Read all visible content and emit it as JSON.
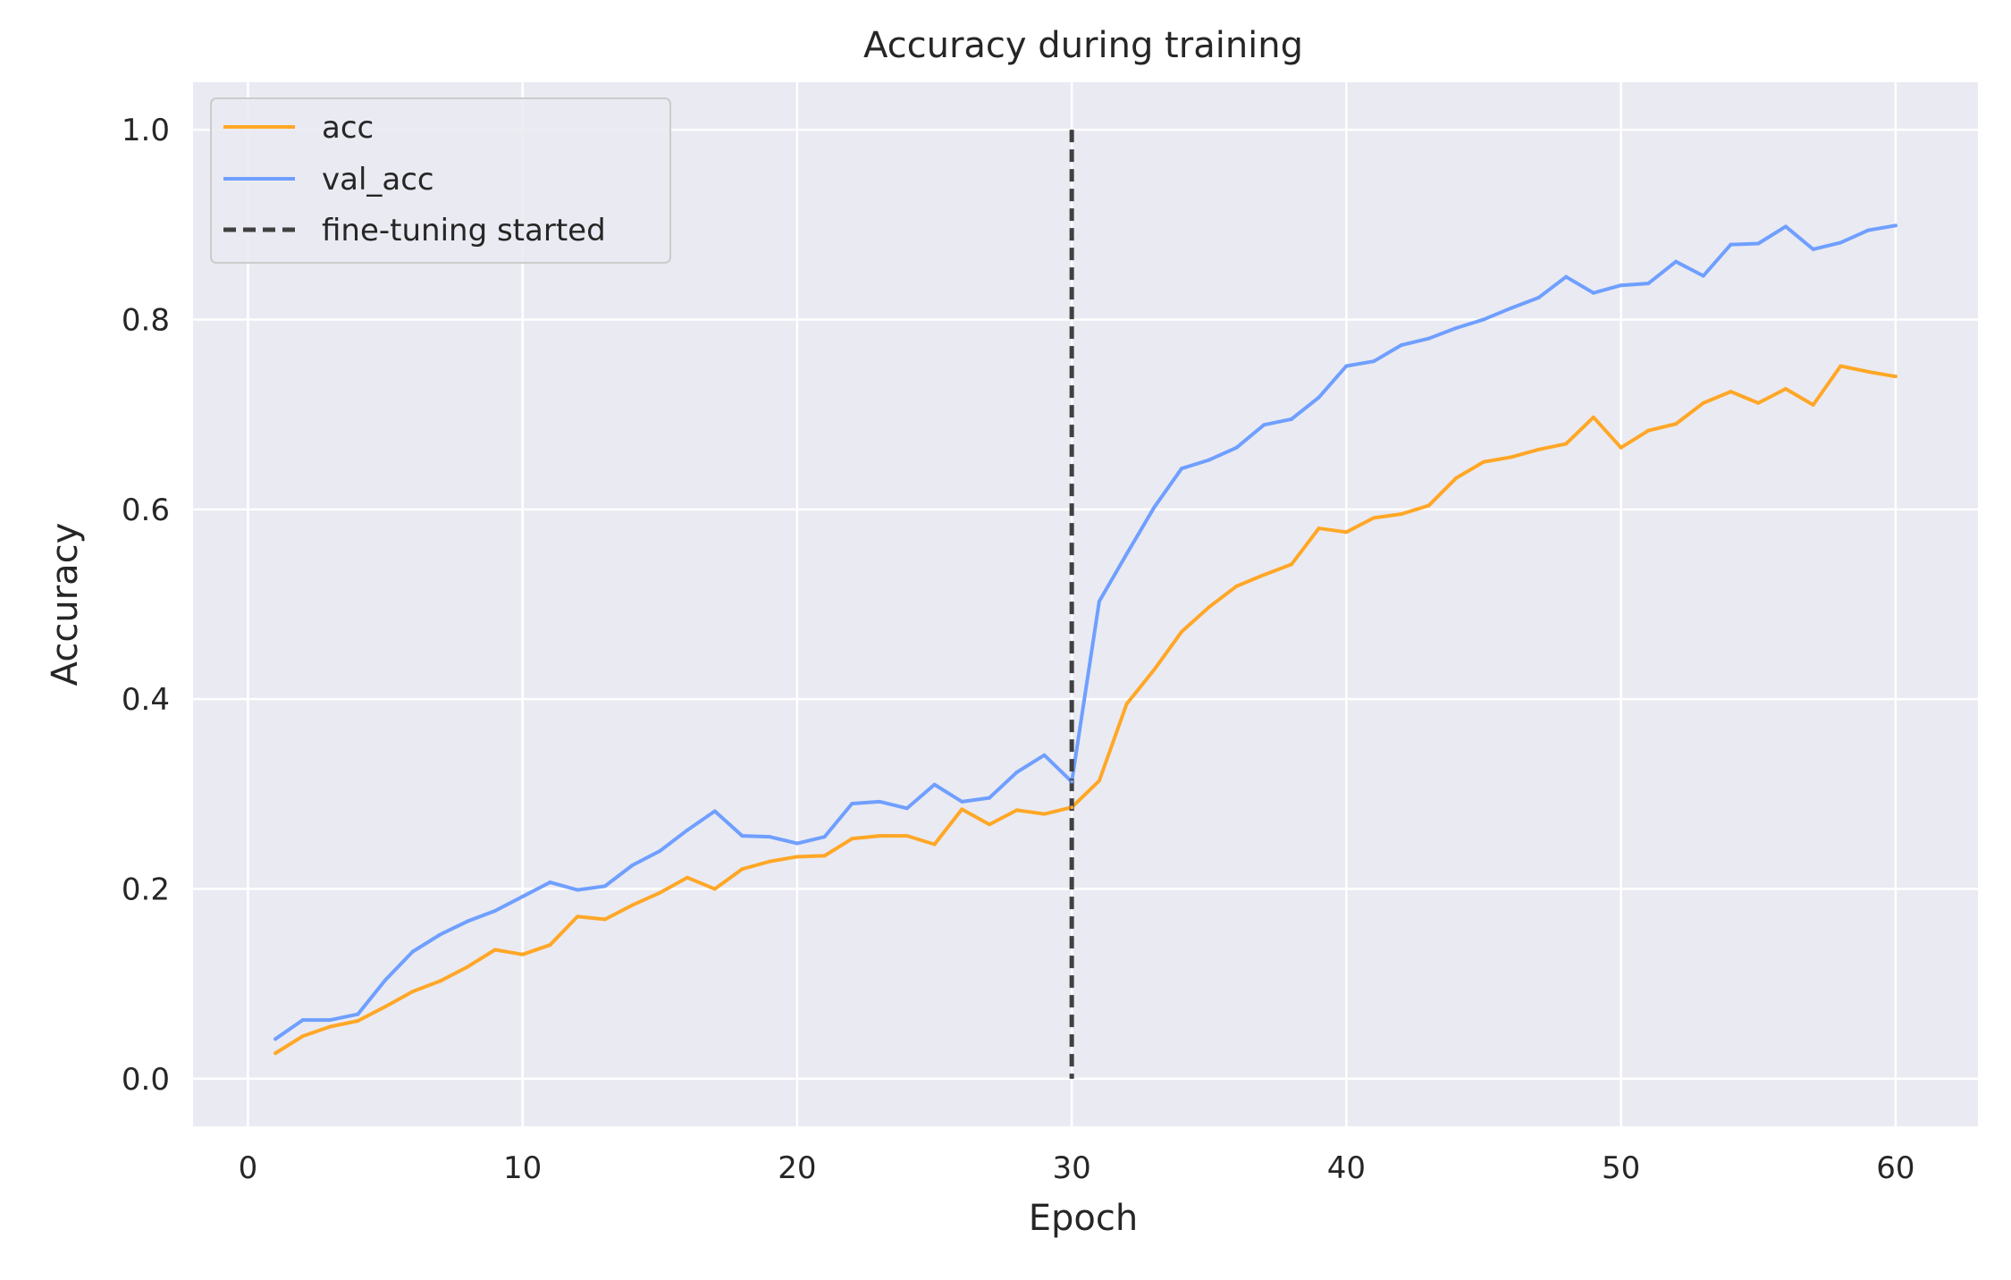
{
  "chart_data": {
    "type": "line",
    "title": "Accuracy during training",
    "xlabel": "Epoch",
    "ylabel": "Accuracy",
    "xlim": [
      -2,
      63
    ],
    "ylim": [
      -0.05,
      1.05
    ],
    "xticks": [
      0,
      10,
      20,
      30,
      40,
      50,
      60
    ],
    "yticks": [
      0.0,
      0.2,
      0.4,
      0.6,
      0.8,
      1.0
    ],
    "xtick_labels": [
      "0",
      "10",
      "20",
      "30",
      "40",
      "50",
      "60"
    ],
    "ytick_labels": [
      "0.0",
      "0.2",
      "0.4",
      "0.6",
      "0.8",
      "1.0"
    ],
    "grid": true,
    "legend_position": "top-left",
    "background": "#eaeaf2",
    "x": [
      1,
      2,
      3,
      4,
      5,
      6,
      7,
      8,
      9,
      10,
      11,
      12,
      13,
      14,
      15,
      16,
      17,
      18,
      19,
      20,
      21,
      22,
      23,
      24,
      25,
      26,
      27,
      28,
      29,
      30,
      31,
      32,
      33,
      34,
      35,
      36,
      37,
      38,
      39,
      40,
      41,
      42,
      43,
      44,
      45,
      46,
      47,
      48,
      49,
      50,
      51,
      52,
      53,
      54,
      55,
      56,
      57,
      58,
      59,
      60
    ],
    "series": [
      {
        "name": "acc",
        "color": "#ffa726",
        "values": [
          0.027,
          0.045,
          0.055,
          0.061,
          0.076,
          0.092,
          0.103,
          0.118,
          0.136,
          0.131,
          0.141,
          0.171,
          0.168,
          0.183,
          0.196,
          0.212,
          0.2,
          0.221,
          0.229,
          0.234,
          0.235,
          0.253,
          0.256,
          0.256,
          0.247,
          0.284,
          0.268,
          0.283,
          0.279,
          0.286,
          0.314,
          0.395,
          0.431,
          0.471,
          0.497,
          0.519,
          0.531,
          0.542,
          0.58,
          0.576,
          0.591,
          0.595,
          0.604,
          0.633,
          0.65,
          0.655,
          0.663,
          0.669,
          0.697,
          0.665,
          0.683,
          0.69,
          0.712,
          0.724,
          0.712,
          0.727,
          0.71,
          0.751,
          0.745,
          0.74
        ]
      },
      {
        "name": "val_acc",
        "color": "#6f9fff",
        "values": [
          0.042,
          0.062,
          0.062,
          0.068,
          0.104,
          0.134,
          0.152,
          0.166,
          0.177,
          0.192,
          0.207,
          0.199,
          0.203,
          0.225,
          0.24,
          0.262,
          0.282,
          0.256,
          0.255,
          0.248,
          0.255,
          0.29,
          0.292,
          0.285,
          0.31,
          0.292,
          0.296,
          0.323,
          0.341,
          0.313,
          0.503,
          0.553,
          0.602,
          0.643,
          0.652,
          0.665,
          0.689,
          0.695,
          0.718,
          0.751,
          0.756,
          0.773,
          0.78,
          0.791,
          0.8,
          0.812,
          0.823,
          0.845,
          0.828,
          0.836,
          0.838,
          0.861,
          0.846,
          0.879,
          0.88,
          0.898,
          0.874,
          0.881,
          0.894,
          0.899
        ]
      }
    ],
    "vline": {
      "name": "fine-tuning started",
      "x": 30,
      "y_range": [
        0.0,
        1.0
      ],
      "color": "#404040",
      "style": "dashed"
    }
  }
}
